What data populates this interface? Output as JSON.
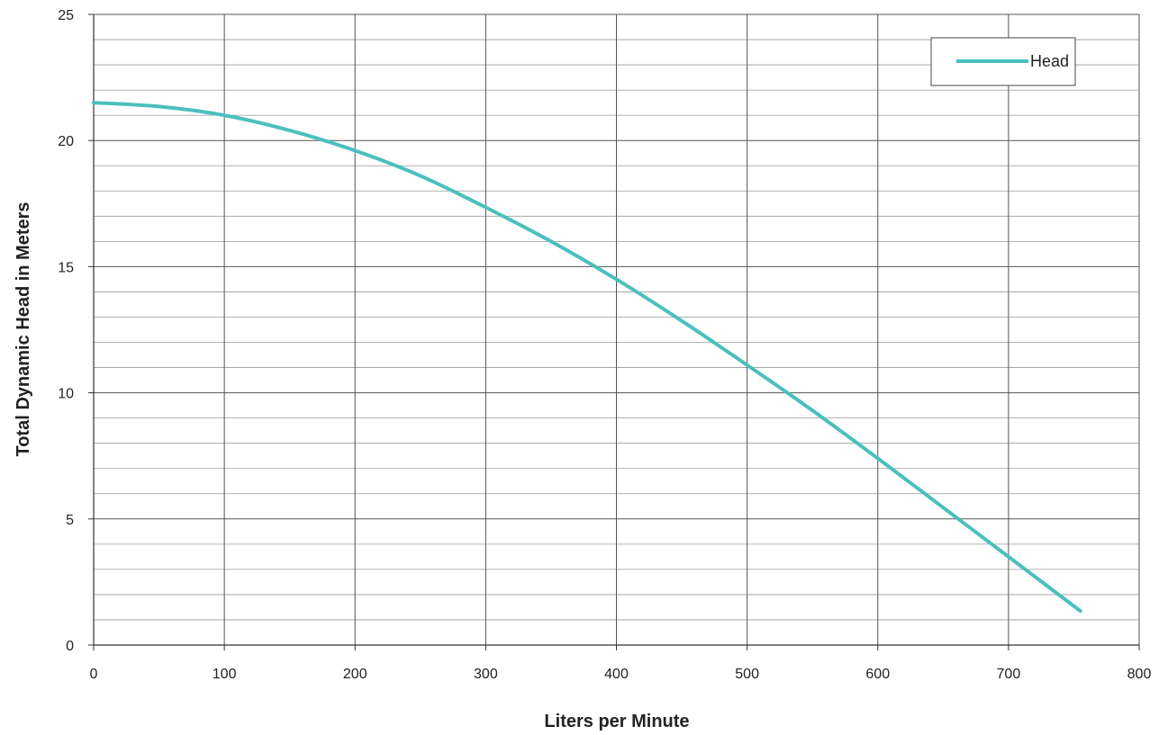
{
  "chart_data": {
    "type": "line",
    "title": "",
    "xlabel": "Liters per Minute",
    "ylabel": "Total Dynamic Head in Meters",
    "xlim": [
      0,
      800
    ],
    "ylim": [
      0,
      25
    ],
    "x_ticks": [
      0,
      100,
      200,
      300,
      400,
      500,
      600,
      700,
      800
    ],
    "y_ticks": [
      0,
      5,
      10,
      15,
      20,
      25
    ],
    "y_minor_step": 1,
    "grid": true,
    "legend": {
      "position": "top-right",
      "entries": [
        "Head"
      ]
    },
    "series": [
      {
        "name": "Head",
        "color": "#4bbfbf",
        "x": [
          0,
          50,
          100,
          150,
          200,
          250,
          300,
          350,
          400,
          450,
          500,
          550,
          600,
          650,
          700,
          755
        ],
        "y": [
          21.5,
          21.35,
          21.0,
          20.4,
          19.6,
          18.6,
          17.35,
          16.0,
          14.5,
          12.85,
          11.1,
          9.3,
          7.4,
          5.45,
          3.5,
          1.35
        ]
      }
    ]
  }
}
